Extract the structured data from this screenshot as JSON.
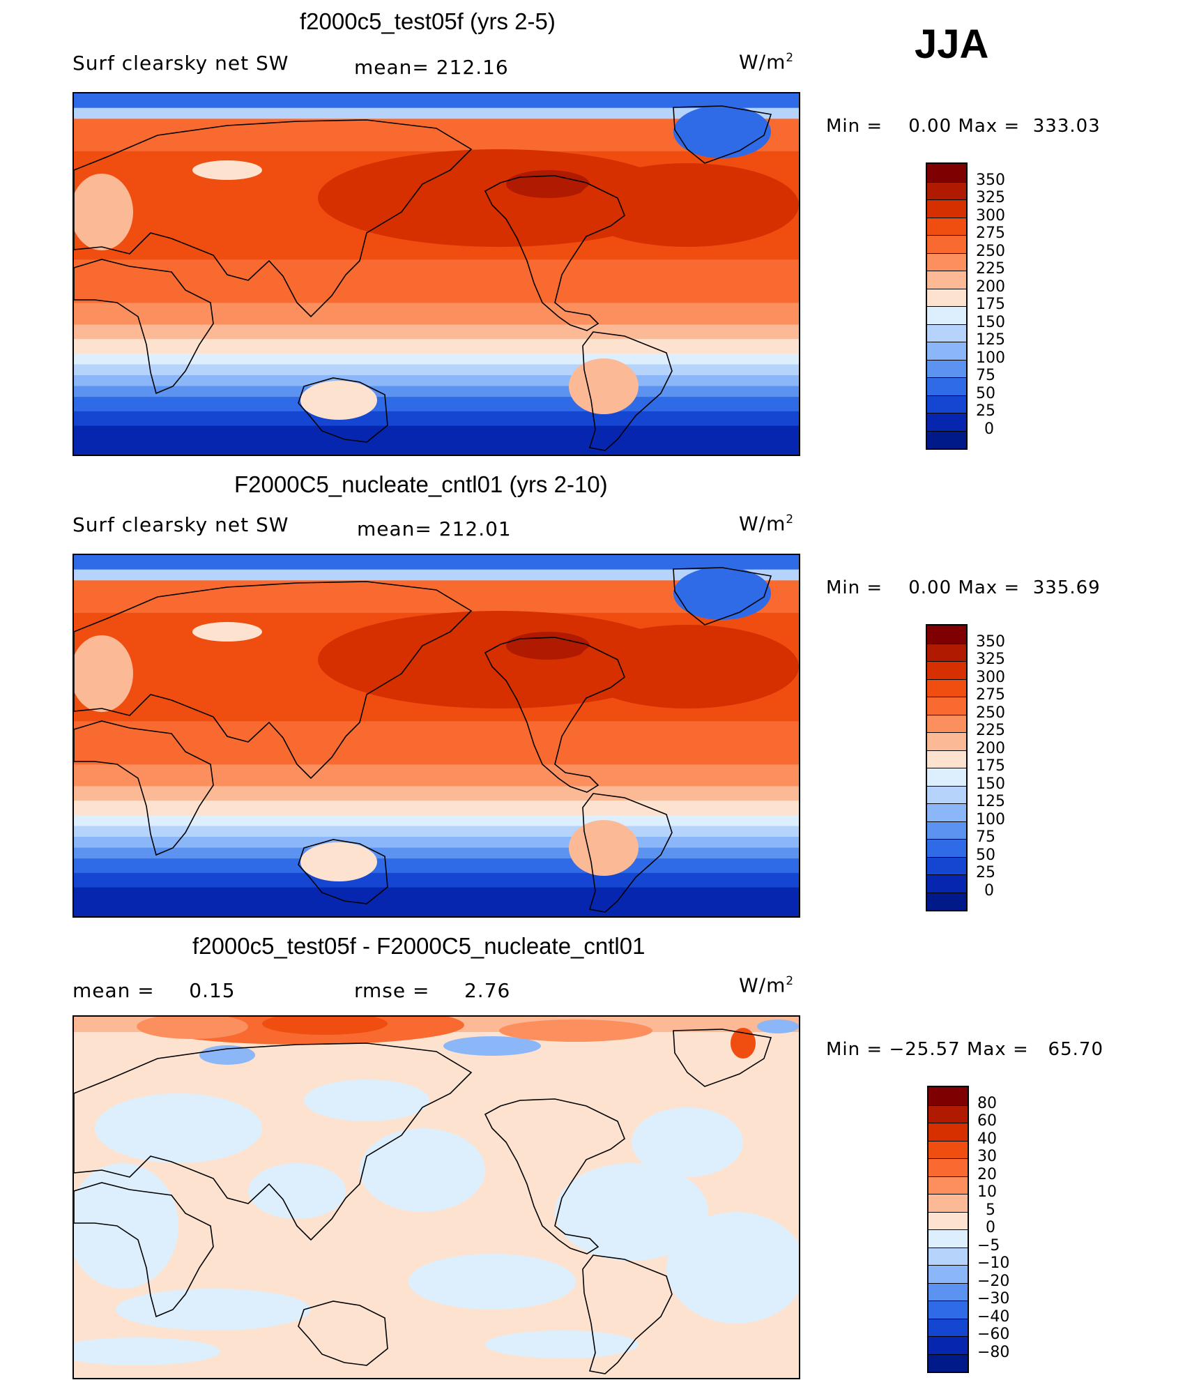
{
  "season": "JJA",
  "panels": [
    {
      "id": "p1",
      "title": "f2000c5_test05f (yrs 2-5)",
      "left_label": "Surf clearsky net SW",
      "center_label": "mean= 212.16",
      "units": "W/m",
      "units_sup": "2",
      "min_label": "Min =",
      "min_value": "0.00",
      "max_label": "Max =",
      "max_value": "333.03",
      "colorbar_labels": [
        "350",
        "325",
        "300",
        "275",
        "250",
        "225",
        "200",
        "175",
        "150",
        "125",
        "100",
        "75",
        "50",
        "25",
        "0"
      ],
      "colorbar_colors": [
        "#7f0000",
        "#b01a00",
        "#d63000",
        "#f04d10",
        "#f86a30",
        "#fb8f5e",
        "#fcb996",
        "#fde3cf",
        "#ddeefd",
        "#b6d4fb",
        "#8bb6f7",
        "#5c93f0",
        "#2f6be6",
        "#1546d2",
        "#0626b0",
        "#001a8a"
      ],
      "map_style": "absolute"
    },
    {
      "id": "p2",
      "title": "F2000C5_nucleate_cntl01 (yrs 2-10)",
      "left_label": "Surf clearsky net SW",
      "center_label": "mean= 212.01",
      "units": "W/m",
      "units_sup": "2",
      "min_label": "Min =",
      "min_value": "0.00",
      "max_label": "Max =",
      "max_value": "335.69",
      "colorbar_labels": [
        "350",
        "325",
        "300",
        "275",
        "250",
        "225",
        "200",
        "175",
        "150",
        "125",
        "100",
        "75",
        "50",
        "25",
        "0"
      ],
      "colorbar_colors": [
        "#7f0000",
        "#b01a00",
        "#d63000",
        "#f04d10",
        "#f86a30",
        "#fb8f5e",
        "#fcb996",
        "#fde3cf",
        "#ddeefd",
        "#b6d4fb",
        "#8bb6f7",
        "#5c93f0",
        "#2f6be6",
        "#1546d2",
        "#0626b0",
        "#001a8a"
      ],
      "map_style": "absolute"
    },
    {
      "id": "p3",
      "title": "f2000c5_test05f - F2000C5_nucleate_cntl01",
      "left_label": "mean =     0.15",
      "center_label": "rmse =     2.76",
      "units": "W/m",
      "units_sup": "2",
      "min_label": "Min =",
      "min_value": "−25.57",
      "max_label": "Max =",
      "max_value": "65.70",
      "colorbar_labels": [
        "80",
        "60",
        "40",
        "30",
        "20",
        "10",
        "5",
        "0",
        "−5",
        "−10",
        "−20",
        "−30",
        "−40",
        "−60",
        "−80"
      ],
      "colorbar_colors": [
        "#7f0000",
        "#b01a00",
        "#d63000",
        "#f04d10",
        "#f86a30",
        "#fb8f5e",
        "#fcb996",
        "#fde3cf",
        "#ddeefd",
        "#b6d4fb",
        "#8bb6f7",
        "#5c93f0",
        "#2f6be6",
        "#1546d2",
        "#0626b0",
        "#001a8a"
      ],
      "map_style": "difference"
    }
  ]
}
